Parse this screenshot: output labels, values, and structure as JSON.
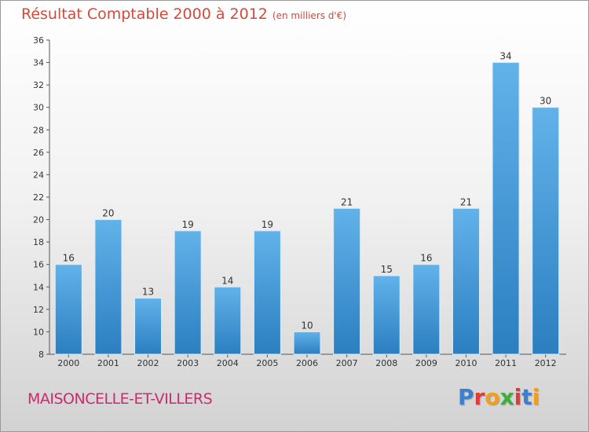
{
  "header": {
    "title": "Résultat Comptable 2000 à 2012",
    "subtitle": "(en milliers d'€)"
  },
  "footer": {
    "place": "MAISONCELLE-ET-VILLERS",
    "brand": "Proxiti"
  },
  "colors": {
    "bar_top": "#62b2ea",
    "bar_bottom": "#2b7fc0",
    "title": "#d24a3a",
    "place": "#cc2a6e",
    "brand_letters": [
      "#3a7fd0",
      "#e23a3a",
      "#f0a020",
      "#3fae3f",
      "#e23a3a",
      "#3a7fd0",
      "#f0a020"
    ]
  },
  "chart_data": {
    "type": "bar",
    "categories": [
      "2000",
      "2001",
      "2002",
      "2003",
      "2004",
      "2005",
      "2006",
      "2007",
      "2008",
      "2009",
      "2010",
      "2011",
      "2012"
    ],
    "values": [
      16,
      20,
      13,
      19,
      14,
      19,
      10,
      21,
      15,
      16,
      21,
      34,
      30
    ],
    "title": "Résultat Comptable 2000 à 2012",
    "subtitle": "(en milliers d'€)",
    "ylim": [
      8,
      36
    ],
    "yticks": [
      8,
      10,
      12,
      14,
      16,
      18,
      20,
      22,
      24,
      26,
      28,
      30,
      32,
      34,
      36
    ],
    "grid": false,
    "data_labels": true
  }
}
